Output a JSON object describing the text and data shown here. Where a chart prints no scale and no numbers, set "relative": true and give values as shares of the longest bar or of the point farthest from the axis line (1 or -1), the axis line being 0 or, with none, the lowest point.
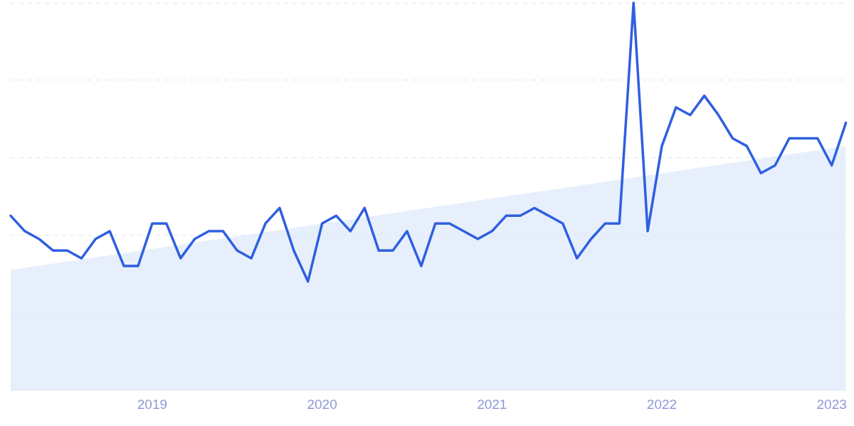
{
  "chart_data": {
    "type": "line",
    "relative": true,
    "grid": "y",
    "legend": false,
    "xlim": [
      "2018-03",
      "2023-02"
    ],
    "xticks": [
      "2019",
      "2020",
      "2021",
      "2022",
      "2023"
    ],
    "series": [
      {
        "type": "area",
        "color": "#dbe8f9",
        "x": [
          "2018-03",
          "2023-02"
        ],
        "values": [
          0.31,
          0.63
        ]
      },
      {
        "color": "#2f5fe0",
        "x": [
          "2018-03",
          "2018-04",
          "2018-05",
          "2018-06",
          "2018-07",
          "2018-08",
          "2018-09",
          "2018-10",
          "2018-11",
          "2018-12",
          "2019-01",
          "2019-02",
          "2019-03",
          "2019-04",
          "2019-05",
          "2019-06",
          "2019-07",
          "2019-08",
          "2019-09",
          "2019-10",
          "2019-11",
          "2019-12",
          "2020-01",
          "2020-02",
          "2020-03",
          "2020-04",
          "2020-05",
          "2020-06",
          "2020-07",
          "2020-08",
          "2020-09",
          "2020-10",
          "2020-11",
          "2020-12",
          "2021-01",
          "2021-02",
          "2021-03",
          "2021-04",
          "2021-05",
          "2021-06",
          "2021-07",
          "2021-08",
          "2021-09",
          "2021-10",
          "2021-11",
          "2021-12",
          "2022-01",
          "2022-02",
          "2022-03",
          "2022-04",
          "2022-05",
          "2022-06",
          "2022-07",
          "2022-08",
          "2022-09",
          "2022-10",
          "2022-11",
          "2022-12",
          "2023-01",
          "2023-02"
        ],
        "values": [
          0.45,
          0.41,
          0.39,
          0.36,
          0.36,
          0.34,
          0.39,
          0.41,
          0.32,
          0.32,
          0.43,
          0.43,
          0.34,
          0.39,
          0.41,
          0.41,
          0.36,
          0.34,
          0.43,
          0.47,
          0.36,
          0.28,
          0.43,
          0.45,
          0.41,
          0.47,
          0.36,
          0.36,
          0.41,
          0.32,
          0.43,
          0.43,
          0.41,
          0.39,
          0.41,
          0.45,
          0.45,
          0.47,
          0.45,
          0.43,
          0.34,
          0.39,
          0.43,
          0.43,
          1,
          0.41,
          0.63,
          0.73,
          0.71,
          0.76,
          0.71,
          0.65,
          0.63,
          0.56,
          0.58,
          0.65,
          0.65,
          0.65,
          0.58,
          0.69
        ]
      }
    ]
  }
}
